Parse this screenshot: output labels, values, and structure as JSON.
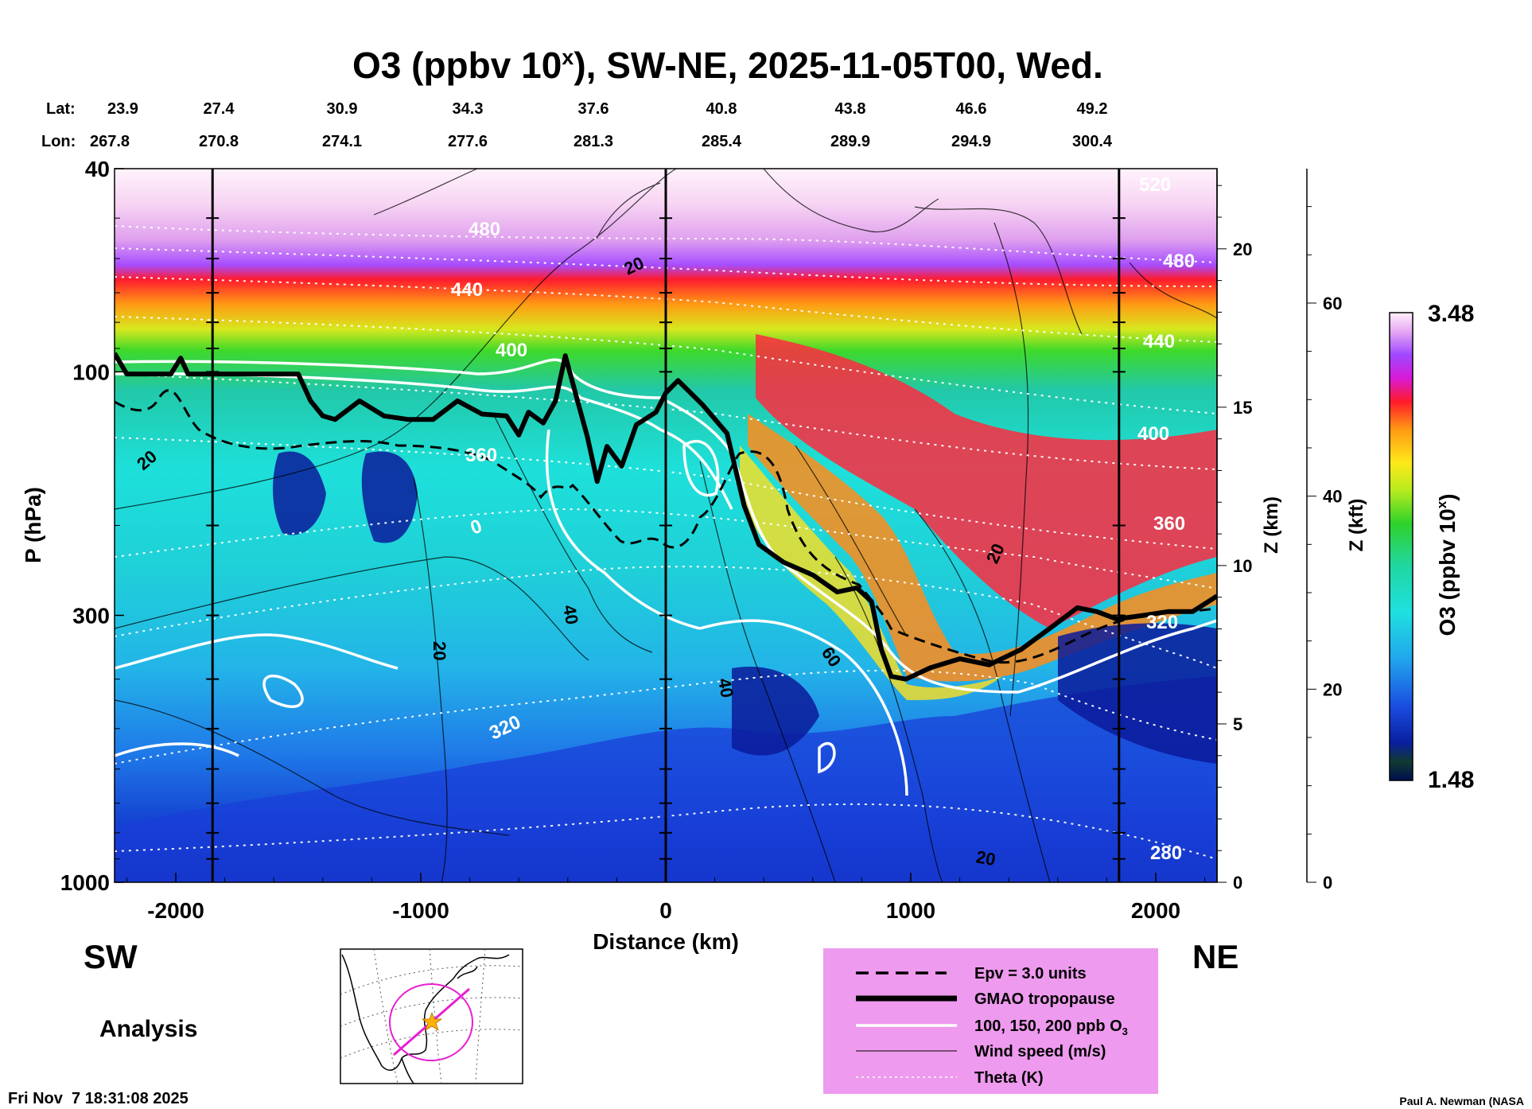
{
  "chart_data": {
    "type": "heatmap",
    "title": "O3 (ppbv 10",
    "title_sup": "x",
    "title_rest": "), SW-NE, 2025-11-05T00, Wed.",
    "xlabel": "Distance (km)",
    "ylabel": "P (hPa)",
    "right_axis_1_label": "Z (km)",
    "right_axis_2_label": "Z (kft)",
    "colorbar_label": "O3 (ppbv 10",
    "colorbar_label_sup": "x",
    "colorbar_label_end": ")",
    "colorbar_max": "3.48",
    "colorbar_min": "1.48",
    "colorbar_range": [
      1.48,
      3.48
    ],
    "xlim": [
      -2250,
      2250
    ],
    "ylim_hpa": [
      1000,
      40
    ],
    "x_ticks": [
      {
        "value": -2000,
        "label": "-2000"
      },
      {
        "value": -1000,
        "label": "-1000"
      },
      {
        "value": 0,
        "label": "0"
      },
      {
        "value": 1000,
        "label": "1000"
      },
      {
        "value": 2000,
        "label": "2000"
      }
    ],
    "p_ticks": [
      {
        "value": 40,
        "label": "40"
      },
      {
        "value": 100,
        "label": "100"
      },
      {
        "value": 300,
        "label": "300"
      },
      {
        "value": 1000,
        "label": "1000"
      }
    ],
    "z_km_ticks": [
      {
        "value": 0,
        "label": "0"
      },
      {
        "value": 5,
        "label": "5"
      },
      {
        "value": 10,
        "label": "10"
      },
      {
        "value": 15,
        "label": "15"
      },
      {
        "value": 20,
        "label": "20"
      }
    ],
    "z_kft_ticks": [
      {
        "value": 0,
        "label": "0"
      },
      {
        "value": 20,
        "label": "20"
      },
      {
        "value": 40,
        "label": "40"
      },
      {
        "value": 60,
        "label": "60"
      }
    ],
    "lat_label": "Lat:",
    "lon_label": "Lon:",
    "lat_values": [
      "23.9",
      "27.4",
      "30.9",
      "34.3",
      "37.6",
      "40.8",
      "43.8",
      "46.6",
      "49.2"
    ],
    "lon_values": [
      "267.8",
      "270.8",
      "274.1",
      "277.6",
      "281.3",
      "285.4",
      "289.9",
      "294.9",
      "300.4"
    ],
    "vertical_markers_km": [
      -1850,
      0,
      1850
    ],
    "tropopause": [
      [
        -2250,
        92
      ],
      [
        -2200,
        101
      ],
      [
        -2100,
        101
      ],
      [
        -2020,
        101
      ],
      [
        -1980,
        94
      ],
      [
        -1950,
        101
      ],
      [
        -1800,
        101
      ],
      [
        -1500,
        101
      ],
      [
        -1450,
        114
      ],
      [
        -1400,
        122
      ],
      [
        -1350,
        124
      ],
      [
        -1250,
        114
      ],
      [
        -1150,
        122
      ],
      [
        -1050,
        124
      ],
      [
        -950,
        124
      ],
      [
        -850,
        114
      ],
      [
        -750,
        121
      ],
      [
        -650,
        122
      ],
      [
        -600,
        133
      ],
      [
        -560,
        120
      ],
      [
        -500,
        126
      ],
      [
        -450,
        114
      ],
      [
        -410,
        93
      ],
      [
        -360,
        114
      ],
      [
        -320,
        134
      ],
      [
        -280,
        164
      ],
      [
        -240,
        140
      ],
      [
        -180,
        153
      ],
      [
        -120,
        127
      ],
      [
        -40,
        120
      ],
      [
        0,
        110
      ],
      [
        50,
        104
      ],
      [
        150,
        116
      ],
      [
        250,
        132
      ],
      [
        320,
        183
      ],
      [
        380,
        218
      ],
      [
        480,
        236
      ],
      [
        600,
        250
      ],
      [
        700,
        270
      ],
      [
        780,
        265
      ],
      [
        840,
        282
      ],
      [
        880,
        350
      ],
      [
        920,
        395
      ],
      [
        980,
        400
      ],
      [
        1080,
        380
      ],
      [
        1200,
        365
      ],
      [
        1320,
        375
      ],
      [
        1450,
        350
      ],
      [
        1580,
        315
      ],
      [
        1680,
        290
      ],
      [
        1760,
        295
      ],
      [
        1840,
        305
      ],
      [
        1950,
        300
      ],
      [
        2050,
        295
      ],
      [
        2150,
        295
      ],
      [
        2250,
        275
      ]
    ],
    "wind_contour_labels": [
      "20",
      "20",
      "20",
      "20",
      "20",
      "40",
      "40",
      "60"
    ],
    "theta_contour_labels": [
      "480",
      "440",
      "400",
      "360",
      "320",
      "280",
      "440",
      "400",
      "360",
      "320",
      "520",
      "480"
    ],
    "o3_contour_labels": [
      "0"
    ],
    "legend": [
      {
        "label": "Epv = 3.0 units",
        "style": "dashed-black"
      },
      {
        "label": "GMAO tropopause",
        "style": "thick-black"
      },
      {
        "label": "100, 150, 200 ppb O",
        "sub": "3",
        "style": "white"
      },
      {
        "label": "Wind speed (m/s)",
        "style": "thin-black"
      },
      {
        "label": "Theta (K)",
        "style": "dotted-white"
      }
    ],
    "colors": {
      "legend_bg": "#EE9AEE",
      "map_track": "#E81FD2",
      "star": "#FFB000"
    }
  },
  "labels": {
    "sw": "SW",
    "ne": "NE",
    "analysis": "Analysis",
    "timestamp": "Fri Nov  7 18:31:08 2025",
    "credit": "Paul A. Newman (NASA"
  }
}
